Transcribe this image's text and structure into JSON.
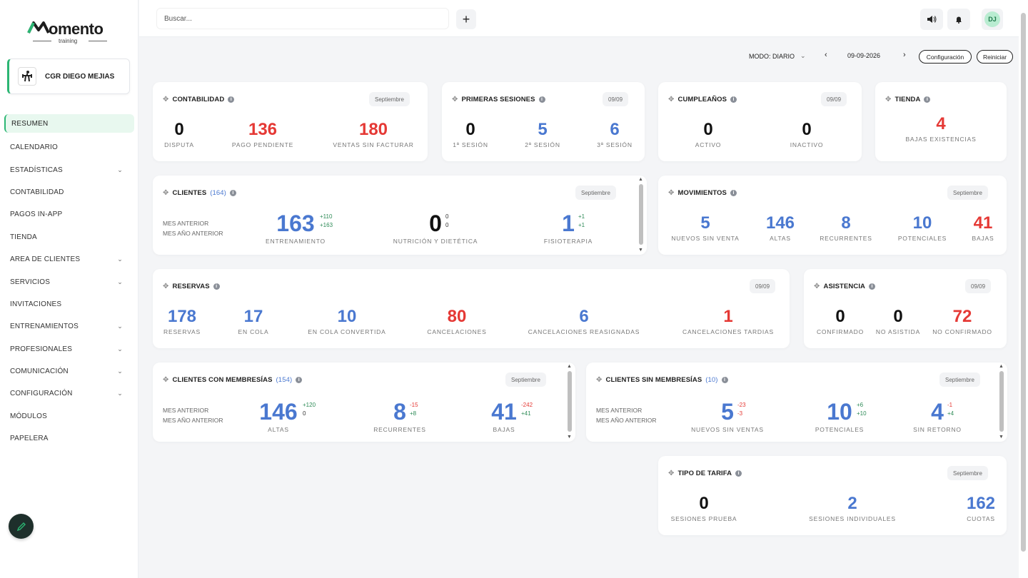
{
  "brand": {
    "name": "omento",
    "sub": "training"
  },
  "profile": {
    "name": "CGR DIEGO MEJIAS"
  },
  "nav": [
    {
      "label": "RESUMEN",
      "chevron": false,
      "active": true
    },
    {
      "label": "CALENDARIO",
      "chevron": false
    },
    {
      "label": "ESTADÍSTICAS",
      "chevron": true
    },
    {
      "label": "CONTABILIDAD",
      "chevron": false
    },
    {
      "label": "PAGOS IN-APP",
      "chevron": false
    },
    {
      "label": "TIENDA",
      "chevron": false
    },
    {
      "label": "AREA DE CLIENTES",
      "chevron": true
    },
    {
      "label": "SERVICIOS",
      "chevron": true
    },
    {
      "label": "INVITACIONES",
      "chevron": false
    },
    {
      "label": "ENTRENAMIENTOS",
      "chevron": true
    },
    {
      "label": "PROFESIONALES",
      "chevron": true
    },
    {
      "label": "COMUNICACIÓN",
      "chevron": true
    },
    {
      "label": "CONFIGURACIÓN",
      "chevron": true
    },
    {
      "label": "MÓDULOS",
      "chevron": false
    },
    {
      "label": "PAPELERA",
      "chevron": false
    }
  ],
  "search": {
    "placeholder": "Buscar..."
  },
  "user": {
    "initials": "DJ"
  },
  "controls": {
    "mode": "MODO: DIARIO",
    "date": "09-09-2026",
    "config": "Configuración",
    "reset": "Reiniciar"
  },
  "contabilidad": {
    "title": "CONTABILIDAD",
    "tag": "Septiembre",
    "stats": [
      {
        "v": "0",
        "l": "DISPUTA"
      },
      {
        "v": "136",
        "l": "PAGO PENDIENTE"
      },
      {
        "v": "180",
        "l": "VENTAS SIN FACTURAR"
      }
    ]
  },
  "primeras": {
    "title": "PRIMERAS SESIONES",
    "tag": "09/09",
    "stats": [
      {
        "v": "0",
        "l": "1ª SESIÓN"
      },
      {
        "v": "5",
        "l": "2ª SESIÓN"
      },
      {
        "v": "6",
        "l": "3ª SESIÓN"
      }
    ]
  },
  "cumple": {
    "title": "CUMPLEAÑOS",
    "tag": "09/09",
    "stats": [
      {
        "v": "0",
        "l": "ACTIVO"
      },
      {
        "v": "0",
        "l": "INACTIVO"
      }
    ]
  },
  "tienda": {
    "title": "TIENDA",
    "stats": [
      {
        "v": "4",
        "l": "BAJAS EXISTENCIAS"
      }
    ]
  },
  "clientes": {
    "title": "CLIENTES",
    "count": "(164)",
    "tag": "Septiembre",
    "side": [
      "MES ANTERIOR",
      "MES AÑO ANTERIOR"
    ],
    "stats": [
      {
        "v": "163",
        "l": "ENTRENAMIENTO",
        "d1": "+110",
        "d2": "+163"
      },
      {
        "v": "0",
        "l": "NUTRICIÓN Y DIETÉTICA",
        "d1": "0",
        "d2": "0"
      },
      {
        "v": "1",
        "l": "FISIOTERAPIA",
        "d1": "+1",
        "d2": "+1"
      }
    ]
  },
  "movimientos": {
    "title": "MOVIMIENTOS",
    "tag": "Septiembre",
    "stats": [
      {
        "v": "5",
        "l": "NUEVOS SIN VENTA"
      },
      {
        "v": "146",
        "l": "ALTAS"
      },
      {
        "v": "8",
        "l": "RECURRENTES"
      },
      {
        "v": "10",
        "l": "POTENCIALES"
      },
      {
        "v": "41",
        "l": "BAJAS"
      }
    ]
  },
  "reservas": {
    "title": "RESERVAS",
    "tag": "09/09",
    "stats": [
      {
        "v": "178",
        "l": "RESERVAS"
      },
      {
        "v": "17",
        "l": "EN COLA"
      },
      {
        "v": "10",
        "l": "EN COLA CONVERTIDA"
      },
      {
        "v": "80",
        "l": "CANCELACIONES"
      },
      {
        "v": "6",
        "l": "CANCELACIONES REASIGNADAS"
      },
      {
        "v": "1",
        "l": "CANCELACIONES TARDIAS"
      }
    ]
  },
  "asistencia": {
    "title": "ASISTENCIA",
    "tag": "09/09",
    "stats": [
      {
        "v": "0",
        "l": "CONFIRMADO"
      },
      {
        "v": "0",
        "l": "NO ASISTIDA"
      },
      {
        "v": "72",
        "l": "NO CONFIRMADO"
      }
    ]
  },
  "con_memb": {
    "title": "CLIENTES CON MEMBRESÍAS",
    "count": "(154)",
    "tag": "Septiembre",
    "side": [
      "MES ANTERIOR",
      "MES AÑO ANTERIOR"
    ],
    "stats": [
      {
        "v": "146",
        "l": "ALTAS",
        "d1": "+120",
        "d2": "0"
      },
      {
        "v": "8",
        "l": "RECURRENTES",
        "d1": "-15",
        "d2": "+8"
      },
      {
        "v": "41",
        "l": "BAJAS",
        "d1": "-242",
        "d2": "+41"
      }
    ]
  },
  "sin_memb": {
    "title": "CLIENTES SIN MEMBRESÍAS",
    "count": "(10)",
    "tag": "Septiembre",
    "side": [
      "MES ANTERIOR",
      "MES AÑO ANTERIOR"
    ],
    "stats": [
      {
        "v": "5",
        "l": "NUEVOS SIN VENTAS",
        "d1": "-23",
        "d2": "-3"
      },
      {
        "v": "10",
        "l": "POTENCIALES",
        "d1": "+6",
        "d2": "+10"
      },
      {
        "v": "4",
        "l": "SIN RETORNO",
        "d1": "-1",
        "d2": "+4"
      }
    ]
  },
  "tarifa": {
    "title": "TIPO DE TARIFA",
    "tag": "Septiembre",
    "stats": [
      {
        "v": "0",
        "l": "SESIONES PRUEBA"
      },
      {
        "v": "2",
        "l": "SESIONES INDIVIDUALES"
      },
      {
        "v": "162",
        "l": "CUOTAS"
      }
    ]
  }
}
